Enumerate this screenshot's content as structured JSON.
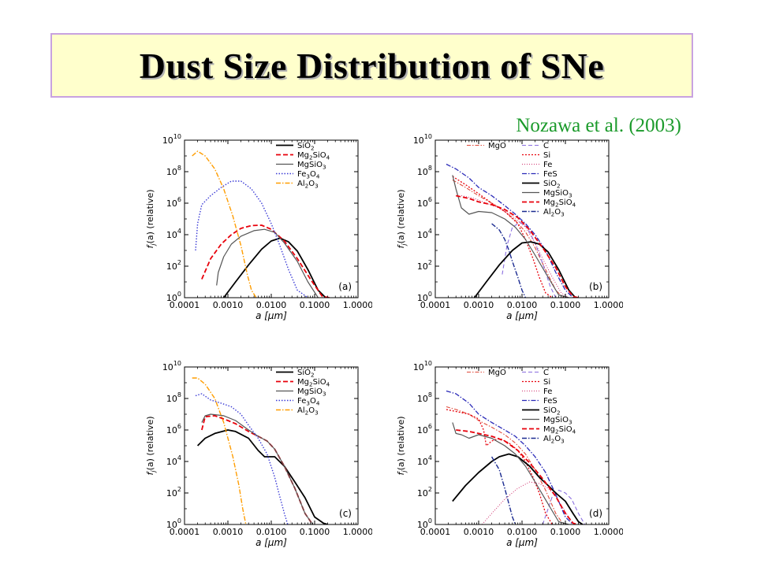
{
  "slide": {
    "title": "Dust Size Distribution of SNe",
    "citation": "Nozawa et al. (2003)"
  },
  "chart_data": [
    {
      "type": "line",
      "panel_label": "(a)",
      "xlabel": "a [μm]",
      "ylabel": "f_j(a) (relative)",
      "x_scale": "log",
      "y_scale": "log",
      "xlim": [
        0.0001,
        1.0
      ],
      "ylim": [
        1,
        10000000000
      ],
      "x_ticks": [
        "0.0001",
        "0.0010",
        "0.0100",
        "0.1000",
        "1.0000"
      ],
      "y_ticks": [
        "10^0",
        "10^2",
        "10^4",
        "10^6",
        "10^8",
        "10^10"
      ],
      "legend_position": "top-right",
      "series": [
        {
          "name": "SiO2",
          "color": "#000000",
          "dash": "solid",
          "width": 1.8,
          "x": [
            0.0008,
            0.0015,
            0.003,
            0.006,
            0.01,
            0.016,
            0.025,
            0.04,
            0.07,
            0.12,
            0.18
          ],
          "y": [
            1,
            10,
            120,
            1200,
            4000,
            6000,
            3500,
            900,
            60,
            3,
            1
          ]
        },
        {
          "name": "Mg2SiO4",
          "color": "#e8000b",
          "dash": "6,3",
          "width": 1.8,
          "x": [
            0.00025,
            0.0004,
            0.0007,
            0.0012,
            0.002,
            0.0035,
            0.006,
            0.01,
            0.02,
            0.04,
            0.08,
            0.15,
            0.22
          ],
          "y": [
            15,
            300,
            2500,
            10000,
            25000,
            38000,
            40000,
            22000,
            4000,
            300,
            15,
            1.2,
            1
          ]
        },
        {
          "name": "MgSiO3",
          "color": "#555555",
          "dash": "solid",
          "width": 1.2,
          "x": [
            0.00055,
            0.0006,
            0.0008,
            0.0012,
            0.002,
            0.004,
            0.007,
            0.012,
            0.02,
            0.04,
            0.07,
            0.12
          ],
          "y": [
            6,
            40,
            400,
            2500,
            8000,
            18000,
            22000,
            14000,
            3000,
            200,
            10,
            1
          ]
        },
        {
          "name": "Fe3O4",
          "color": "#3b3bd6",
          "dash": "1.5,2",
          "width": 1.4,
          "x": [
            0.00018,
            0.0002,
            0.00025,
            0.0004,
            0.0007,
            0.0012,
            0.002,
            0.0035,
            0.006,
            0.01,
            0.015,
            0.025,
            0.04,
            0.07
          ],
          "y": [
            1000,
            50000,
            800000,
            3000000,
            10000000,
            25000000,
            25000000,
            8000000,
            1000000,
            50000,
            3000,
            60,
            3,
            1
          ]
        },
        {
          "name": "Al2O3",
          "color": "#ff9d00",
          "dash": "6,2,1.5,2",
          "width": 1.4,
          "x": [
            0.00015,
            0.0002,
            0.0003,
            0.0005,
            0.0008,
            0.0013,
            0.002,
            0.0028,
            0.0035,
            0.0045
          ],
          "y": [
            1000000000,
            2000000000,
            1000000000,
            150000000,
            8000000,
            150000,
            2000,
            30,
            3,
            1
          ]
        }
      ]
    },
    {
      "type": "line",
      "panel_label": "(b)",
      "xlabel": "a [μm]",
      "ylabel": "f_j(a) (relative)",
      "x_scale": "log",
      "y_scale": "log",
      "xlim": [
        0.0001,
        1.0
      ],
      "ylim": [
        1,
        10000000000
      ],
      "x_ticks": [
        "0.0001",
        "0.0010",
        "0.0100",
        "0.1000",
        "1.0000"
      ],
      "y_ticks": [
        "10^0",
        "10^2",
        "10^4",
        "10^6",
        "10^8",
        "10^10"
      ],
      "legend_position": "top-right",
      "series": [
        {
          "name": "MgO",
          "color": "#e04a3a",
          "dash": "5,2,1.5,2",
          "width": 1.1,
          "x": [
            0.00025,
            0.0005,
            0.001,
            0.002,
            0.004,
            0.007,
            0.012,
            0.02,
            0.035,
            0.06,
            0.09
          ],
          "y": [
            30000000,
            10000000,
            3000000,
            1000000,
            300000,
            80000,
            15000,
            1500,
            60,
            3,
            1
          ]
        },
        {
          "name": "C",
          "color": "#8a6ee0",
          "dash": "5,3",
          "width": 1.1,
          "x": [
            0.0035,
            0.0045,
            0.006,
            0.009,
            0.013,
            0.02,
            0.03,
            0.045,
            0.06
          ],
          "y": [
            30,
            2000,
            30000,
            60000,
            30000,
            3000,
            150,
            5,
            1
          ]
        },
        {
          "name": "Si",
          "color": "#e8000b",
          "dash": "2,2",
          "width": 1.3,
          "x": [
            0.00025,
            0.0005,
            0.001,
            0.002,
            0.004,
            0.008,
            0.012,
            0.018,
            0.025,
            0.035,
            0.05
          ],
          "y": [
            50000000,
            15000000,
            4000000,
            1000000,
            300000,
            50000,
            5000,
            300,
            20,
            2,
            1
          ]
        },
        {
          "name": "Fe",
          "color": "#d0306e",
          "dash": "1,2",
          "width": 1.0,
          "x": [
            0.0004,
            0.0008,
            0.0015,
            0.003,
            0.006,
            0.012,
            0.02,
            0.03,
            0.05,
            0.08,
            0.12
          ],
          "y": [
            3000000,
            2000000,
            1000000,
            500000,
            150000,
            30000,
            3000,
            300,
            20,
            2,
            1
          ]
        },
        {
          "name": "FeS",
          "color": "#2a2ab8",
          "dash": "6,2,1.5,2",
          "width": 1.3,
          "x": [
            0.00018,
            0.0003,
            0.0006,
            0.001,
            0.002,
            0.004,
            0.007,
            0.012,
            0.02,
            0.035,
            0.06,
            0.1,
            0.15
          ],
          "y": [
            300000000,
            150000000,
            40000000,
            10000000,
            3000000,
            700000,
            200000,
            50000,
            10000,
            1000,
            40,
            3,
            1
          ]
        },
        {
          "name": "SiO2",
          "color": "#000000",
          "dash": "solid",
          "width": 1.8,
          "x": [
            0.0008,
            0.0015,
            0.003,
            0.006,
            0.01,
            0.016,
            0.025,
            0.04,
            0.07,
            0.12,
            0.17
          ],
          "y": [
            1,
            10,
            120,
            1000,
            3000,
            3500,
            2500,
            800,
            60,
            3,
            1
          ]
        },
        {
          "name": "MgSiO3",
          "color": "#555555",
          "dash": "solid",
          "width": 1.2,
          "x": [
            0.00025,
            0.0003,
            0.0004,
            0.0006,
            0.001,
            0.002,
            0.004,
            0.007,
            0.012,
            0.02,
            0.04,
            0.07,
            0.12
          ],
          "y": [
            60000000,
            8000000,
            500000,
            200000,
            300000,
            250000,
            100000,
            30000,
            5000,
            500,
            20,
            1.5,
            1
          ]
        },
        {
          "name": "Mg2SiO4",
          "color": "#e8000b",
          "dash": "6,3",
          "width": 1.8,
          "x": [
            0.0003,
            0.0006,
            0.001,
            0.002,
            0.004,
            0.008,
            0.015,
            0.03,
            0.06,
            0.1,
            0.15,
            0.2
          ],
          "y": [
            3000000,
            2000000,
            1200000,
            800000,
            400000,
            120000,
            20000,
            1500,
            80,
            5,
            1.2,
            1
          ]
        },
        {
          "name": "Al2O3",
          "color": "#1a2a90",
          "dash": "6,2,1.5,2",
          "width": 1.4,
          "x": [
            0.002,
            0.003,
            0.004,
            0.005,
            0.006,
            0.008,
            0.01,
            0.012
          ],
          "y": [
            50000,
            20000,
            5000,
            1000,
            200,
            20,
            3,
            1
          ]
        }
      ]
    },
    {
      "type": "line",
      "panel_label": "(c)",
      "xlabel": "a [μm]",
      "ylabel": "f_j(a) (relative)",
      "x_scale": "log",
      "y_scale": "log",
      "xlim": [
        0.0001,
        1.0
      ],
      "ylim": [
        1,
        10000000000
      ],
      "x_ticks": [
        "0.0001",
        "0.0010",
        "0.0100",
        "0.1000",
        "1.0000"
      ],
      "y_ticks": [
        "10^0",
        "10^2",
        "10^4",
        "10^6",
        "10^8",
        "10^10"
      ],
      "legend_position": "top-right",
      "series": [
        {
          "name": "SiO2",
          "color": "#000000",
          "dash": "solid",
          "width": 1.8,
          "x": [
            0.0002,
            0.0003,
            0.0005,
            0.001,
            0.0015,
            0.003,
            0.005,
            0.007,
            0.012,
            0.02,
            0.035,
            0.06,
            0.1,
            0.16,
            0.2
          ],
          "y": [
            100000,
            300000,
            600000,
            1000000,
            800000,
            300000,
            50000,
            20000,
            20000,
            5000,
            500,
            50,
            3,
            1.2,
            1
          ]
        },
        {
          "name": "Mg2SiO4",
          "color": "#e8000b",
          "dash": "6,3",
          "width": 1.8,
          "x": [
            0.00025,
            0.0003,
            0.0005,
            0.001,
            0.0015,
            0.003,
            0.005,
            0.008,
            0.012,
            0.02,
            0.035,
            0.06,
            0.09
          ],
          "y": [
            1000000,
            7000000,
            8000000,
            4000000,
            2500000,
            800000,
            400000,
            200000,
            60000,
            5000,
            200,
            5,
            1
          ]
        },
        {
          "name": "MgSiO3",
          "color": "#555555",
          "dash": "solid",
          "width": 1.2,
          "x": [
            0.00025,
            0.0003,
            0.0004,
            0.0008,
            0.0015,
            0.003,
            0.005,
            0.008,
            0.012,
            0.02,
            0.035,
            0.06,
            0.09
          ],
          "y": [
            3000000,
            8000000,
            10000000,
            8000000,
            4000000,
            1000000,
            400000,
            200000,
            60000,
            5000,
            200,
            5,
            1
          ]
        },
        {
          "name": "Fe3O4",
          "color": "#3b3bd6",
          "dash": "1.5,2",
          "width": 1.4,
          "x": [
            0.00018,
            0.00025,
            0.0004,
            0.0007,
            0.0012,
            0.002,
            0.003,
            0.005,
            0.008,
            0.012,
            0.016,
            0.02,
            0.024
          ],
          "y": [
            150000000,
            200000000,
            80000000,
            50000000,
            30000000,
            10000000,
            2000000,
            300000,
            30000,
            1000,
            50,
            5,
            1
          ]
        },
        {
          "name": "Al2O3",
          "color": "#ff9d00",
          "dash": "6,2,1.5,2",
          "width": 1.4,
          "x": [
            0.00015,
            0.0002,
            0.0003,
            0.0005,
            0.0008,
            0.0013,
            0.0018,
            0.0022,
            0.0026
          ],
          "y": [
            2000000000,
            2000000000,
            800000000,
            100000000,
            3000000,
            20000,
            300,
            10,
            1
          ]
        }
      ]
    },
    {
      "type": "line",
      "panel_label": "(d)",
      "xlabel": "a [μm]",
      "ylabel": "f_j(a) (relative)",
      "x_scale": "log",
      "y_scale": "log",
      "xlim": [
        0.0001,
        1.0
      ],
      "ylim": [
        1,
        10000000000
      ],
      "x_ticks": [
        "0.0001",
        "0.0010",
        "0.0100",
        "0.1000",
        "1.0000"
      ],
      "y_ticks": [
        "10^0",
        "10^2",
        "10^4",
        "10^6",
        "10^8",
        "10^10"
      ],
      "legend_position": "top-right",
      "series": [
        {
          "name": "MgO",
          "color": "#e04a3a",
          "dash": "5,2,1.5,2",
          "width": 1.1,
          "x": [
            0.00018,
            0.0003,
            0.0006,
            0.001,
            0.002,
            0.004,
            0.007,
            0.012,
            0.02,
            0.035,
            0.06,
            0.09
          ],
          "y": [
            30000000,
            20000000,
            10000000,
            4000000,
            1500000,
            500000,
            150000,
            30000,
            3000,
            150,
            5,
            1
          ]
        },
        {
          "name": "C",
          "color": "#8a6ee0",
          "dash": "5,3",
          "width": 1.1,
          "x": [
            0.03,
            0.04,
            0.05,
            0.07,
            0.1,
            0.14,
            0.2,
            0.28
          ],
          "y": [
            1,
            10,
            60,
            150,
            100,
            40,
            5,
            1
          ]
        },
        {
          "name": "Si",
          "color": "#e8000b",
          "dash": "2,2",
          "width": 1.3,
          "x": [
            0.00018,
            0.0003,
            0.0006,
            0.001,
            0.0013,
            0.0015,
            0.002,
            0.003,
            0.005,
            0.008,
            0.012,
            0.018,
            0.025,
            0.035,
            0.05
          ],
          "y": [
            20000000,
            15000000,
            10000000,
            5000000,
            1000000,
            100000,
            200000,
            300000,
            150000,
            50000,
            10000,
            1000,
            100,
            5,
            1
          ]
        },
        {
          "name": "Fe",
          "color": "#d0306e",
          "dash": "1,2",
          "width": 1.0,
          "x": [
            0.0012,
            0.002,
            0.004,
            0.008,
            0.015,
            0.025,
            0.04,
            0.06,
            0.09,
            0.13,
            0.17
          ],
          "y": [
            1,
            5,
            40,
            200,
            500,
            400,
            200,
            60,
            10,
            2,
            1
          ]
        },
        {
          "name": "FeS",
          "color": "#2a2ab8",
          "dash": "6,2,1.5,2",
          "width": 1.3,
          "x": [
            0.00018,
            0.0003,
            0.0006,
            0.001,
            0.002,
            0.004,
            0.007,
            0.012,
            0.02,
            0.035,
            0.06,
            0.1,
            0.15
          ],
          "y": [
            300000000,
            200000000,
            50000000,
            10000000,
            3000000,
            1000000,
            400000,
            100000,
            20000,
            2000,
            80,
            3,
            1
          ]
        },
        {
          "name": "SiO2",
          "color": "#000000",
          "dash": "solid",
          "width": 1.8,
          "x": [
            0.00025,
            0.0005,
            0.001,
            0.002,
            0.003,
            0.005,
            0.008,
            0.015,
            0.025,
            0.04,
            0.06,
            0.1,
            0.15,
            0.2,
            0.25
          ],
          "y": [
            30,
            300,
            2000,
            10000,
            20000,
            30000,
            20000,
            5000,
            1000,
            300,
            100,
            30,
            5,
            1.5,
            1
          ]
        },
        {
          "name": "MgSiO3",
          "color": "#555555",
          "dash": "solid",
          "width": 1.2,
          "x": [
            0.00025,
            0.0003,
            0.0004,
            0.0006,
            0.001,
            0.002,
            0.004,
            0.007,
            0.012,
            0.02,
            0.04,
            0.07,
            0.12
          ],
          "y": [
            3000000,
            600000,
            500000,
            300000,
            500000,
            300000,
            100000,
            30000,
            5000,
            500,
            20,
            1.5,
            1
          ]
        },
        {
          "name": "Mg2SiO4",
          "color": "#e8000b",
          "dash": "6,3",
          "width": 1.8,
          "x": [
            0.0003,
            0.0006,
            0.001,
            0.002,
            0.004,
            0.008,
            0.015,
            0.03,
            0.06,
            0.1,
            0.15,
            0.2
          ],
          "y": [
            1000000,
            800000,
            600000,
            400000,
            200000,
            50000,
            8000,
            800,
            60,
            5,
            1.2,
            1
          ]
        },
        {
          "name": "Al2O3",
          "color": "#1a2a90",
          "dash": "6,2,1.5,2",
          "width": 1.4,
          "x": [
            0.002,
            0.003,
            0.004,
            0.005,
            0.006,
            0.007
          ],
          "y": [
            20000,
            3000,
            200,
            20,
            3,
            1
          ]
        }
      ]
    }
  ]
}
